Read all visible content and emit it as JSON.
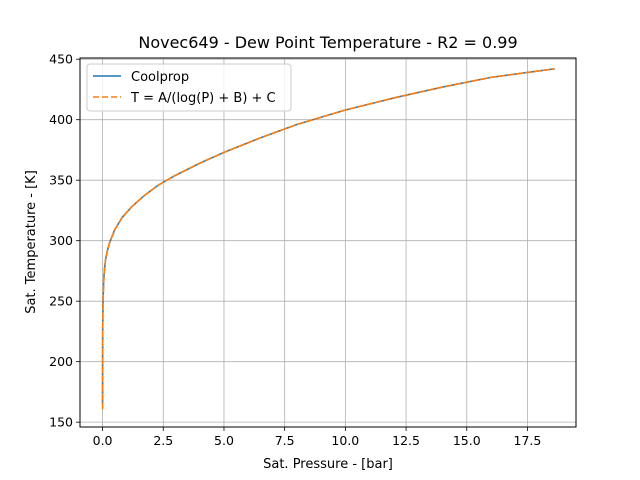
{
  "chart_data": {
    "type": "line",
    "title": "Novec649 - Dew Point Temperature - R2 = 0.99",
    "xlabel": "Sat. Pressure - [bar]",
    "ylabel": "Sat. Temperature - [K]",
    "xlim": [
      -0.93,
      19.5
    ],
    "ylim": [
      146,
      451
    ],
    "xticks": [
      0,
      2.5,
      5,
      7.5,
      10,
      12.5,
      15,
      17.5
    ],
    "xtick_labels": [
      "0.0",
      "2.5",
      "5.0",
      "7.5",
      "10.0",
      "12.5",
      "15.0",
      "17.5"
    ],
    "yticks": [
      150,
      200,
      250,
      300,
      350,
      400,
      450
    ],
    "ytick_labels": [
      "150",
      "200",
      "250",
      "300",
      "350",
      "400",
      "450"
    ],
    "grid": true,
    "legend_position": "top-left",
    "series": [
      {
        "name": "Coolprop",
        "color": "#1f77b4",
        "style": "solid",
        "x": [
          0.0,
          0.002,
          0.006,
          0.015,
          0.03,
          0.05,
          0.08,
          0.12,
          0.2,
          0.3,
          0.5,
          0.8,
          1.2,
          1.7,
          2.3,
          3.0,
          4.0,
          5.0,
          6.5,
          8.0,
          10.0,
          12.0,
          14.0,
          16.0,
          18.6
        ],
        "y": [
          165,
          205,
          228,
          246,
          258,
          268,
          277,
          284,
          292,
          299,
          309,
          319,
          328,
          337,
          346,
          354,
          364,
          373,
          385,
          396,
          408,
          418,
          427,
          435,
          442
        ]
      },
      {
        "name": "T = A/(log(P) + B) + C",
        "color": "#ff7f0e",
        "style": "dashed",
        "x": [
          0.0,
          0.002,
          0.006,
          0.015,
          0.03,
          0.05,
          0.08,
          0.12,
          0.2,
          0.3,
          0.5,
          0.8,
          1.2,
          1.7,
          2.3,
          3.0,
          4.0,
          5.0,
          6.5,
          8.0,
          10.0,
          12.0,
          14.0,
          16.0,
          18.6
        ],
        "y": [
          161,
          205,
          228,
          246,
          258,
          268,
          277,
          284,
          292,
          299,
          309,
          319,
          328,
          337,
          346,
          354,
          364,
          373,
          385,
          396,
          408,
          418,
          427,
          435,
          442
        ]
      }
    ]
  }
}
